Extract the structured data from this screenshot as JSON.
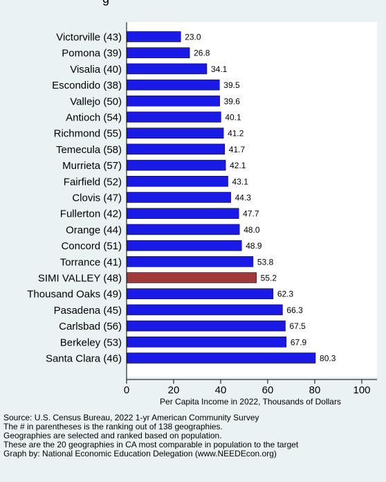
{
  "chart_data": {
    "type": "bar",
    "orientation": "horizontal",
    "title_fragment": "g",
    "xlabel": "Per Capita Income in 2022, Thousands of Dollars",
    "ylabel": "",
    "xlim": [
      0,
      105
    ],
    "x_ticks": [
      0,
      20,
      40,
      60,
      80,
      100
    ],
    "grid": false,
    "legend": "none",
    "categories": [
      "Victorville (43)",
      "Pomona (39)",
      "Visalia (40)",
      "Escondido (38)",
      "Vallejo (50)",
      "Antioch (54)",
      "Richmond (55)",
      "Temecula (58)",
      "Murrieta (57)",
      "Fairfield (52)",
      "Clovis (47)",
      "Fullerton (42)",
      "Orange (44)",
      "Concord (51)",
      "Torrance (41)",
      "SIMI VALLEY (48)",
      "Thousand Oaks (49)",
      "Pasadena (45)",
      "Carlsbad (56)",
      "Berkeley (53)",
      "Santa Clara (46)"
    ],
    "values": [
      23.0,
      26.8,
      34.1,
      39.5,
      39.6,
      40.1,
      41.2,
      41.7,
      42.1,
      43.1,
      44.3,
      47.7,
      48.0,
      48.9,
      53.8,
      55.2,
      62.3,
      66.3,
      67.5,
      67.9,
      80.3
    ],
    "value_labels": [
      "23.0",
      "26.8",
      "34.1",
      "39.5",
      "39.6",
      "40.1",
      "41.2",
      "41.7",
      "42.1",
      "43.1",
      "44.3",
      "47.7",
      "48.0",
      "48.9",
      "53.8",
      "55.2",
      "62.3",
      "66.3",
      "67.5",
      "67.9",
      "80.3"
    ],
    "highlight_category": "SIMI VALLEY (48)",
    "colors": {
      "bar": "#1a1ae6",
      "highlight": "#a03a3a",
      "background": "#eaf2f3",
      "plot_background": "#ffffff"
    }
  },
  "source_notes": [
    "Source: U.S. Census Bureau, 2022 1-yr American Community Survey",
    "The # in parentheses is the ranking out of 138 geographies.",
    "Geographies are selected and ranked based on population.",
    "These are the 20 geographies in CA most comparable in population to the target",
    "Graph by: National Economic Education Delegation (www.NEEDEcon.org)"
  ]
}
